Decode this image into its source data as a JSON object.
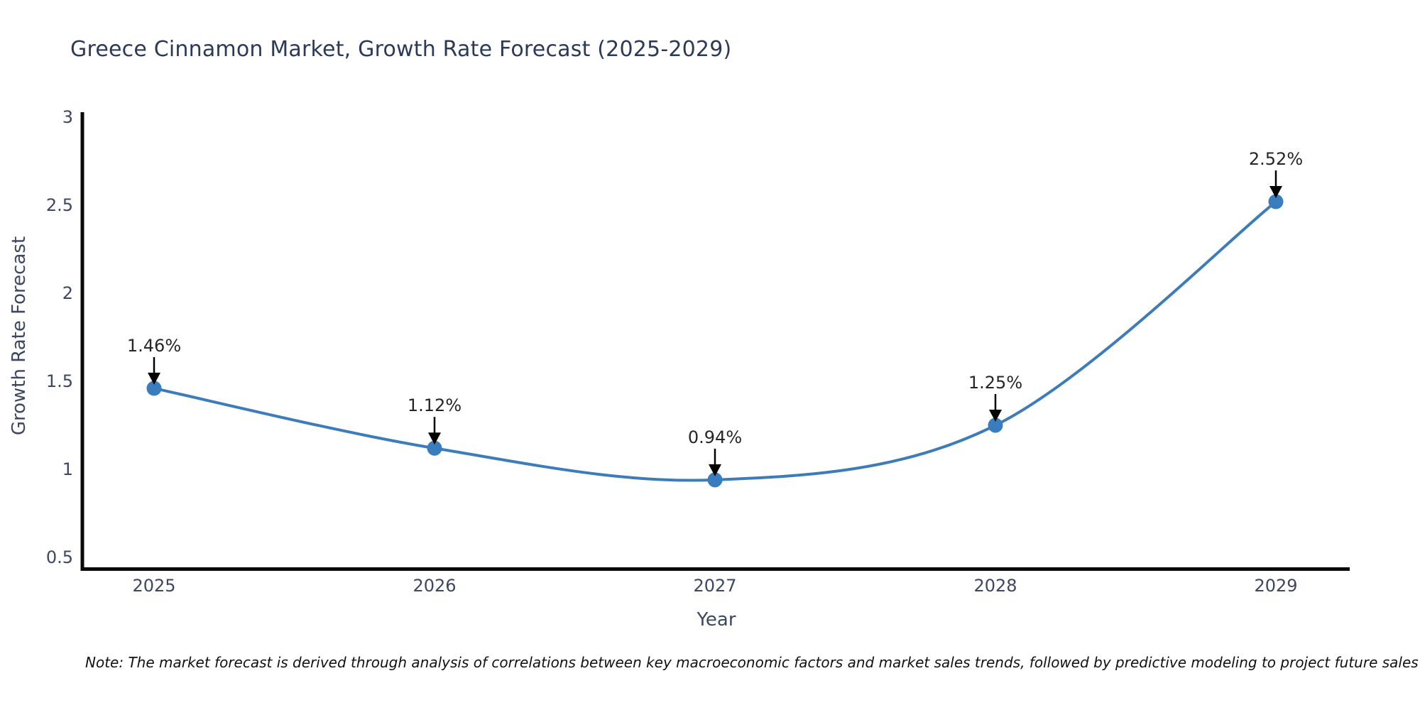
{
  "note": "Note: The market forecast is derived through analysis of correlations between key macroeconomic factors and market sales trends, followed by predictive modeling to project future sales",
  "colors": {
    "line": "#3d7cba",
    "marker": "#3a7dbf",
    "axis": "#0a0a0a",
    "arrow": "#000000",
    "annotation": "#262626",
    "tick": "#3d4761",
    "title": "#2c3a58"
  },
  "chart_data": {
    "type": "line",
    "title": "Greece Cinnamon Market, Growth Rate Forecast (2025-2029)",
    "xlabel": "Year",
    "ylabel": "Growth Rate Forecast",
    "x": [
      "2025",
      "2026",
      "2027",
      "2028",
      "2029"
    ],
    "values": [
      1.46,
      1.12,
      0.94,
      1.25,
      2.52
    ],
    "labels": [
      "1.46%",
      "1.12%",
      "0.94%",
      "1.25%",
      "2.52%"
    ],
    "yticks": [
      0.5,
      1,
      1.5,
      2,
      2.5,
      3
    ],
    "ylim": [
      0.44,
      3.02
    ],
    "grid": false,
    "legend": false,
    "smooth": true,
    "annotations": "value labels with downward black arrows above each marker"
  }
}
